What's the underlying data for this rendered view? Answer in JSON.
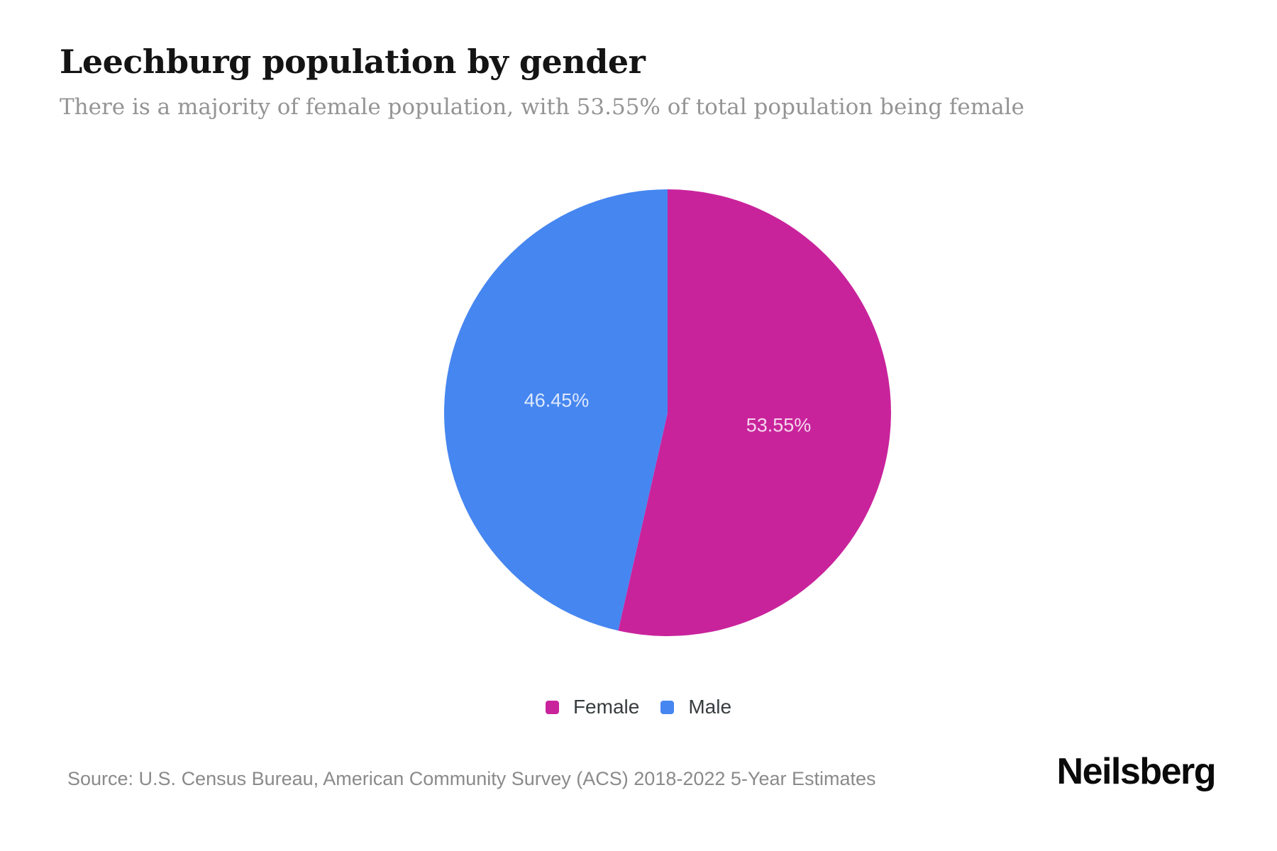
{
  "header": {
    "title": "Leechburg population by gender",
    "subtitle": "There is a majority of female population, with 53.55% of total population being female"
  },
  "chart_data": {
    "type": "pie",
    "title": "Leechburg population by gender",
    "start_angle": "12-o-clock",
    "direction": "clockwise",
    "legend_position": "bottom",
    "slice_label_color": "#ffffff",
    "slice_label_opacity": 0.82,
    "slices": [
      {
        "label": "Female",
        "value": 53.55,
        "pct_label": "53.55%",
        "color": "#c9239c"
      },
      {
        "label": "Male",
        "value": 46.45,
        "pct_label": "46.45%",
        "color": "#4686f0"
      }
    ]
  },
  "footer": {
    "source": "Source: U.S. Census Bureau, American Community Survey (ACS) 2018-2022 5-Year Estimates",
    "brand": "Neilsberg"
  }
}
